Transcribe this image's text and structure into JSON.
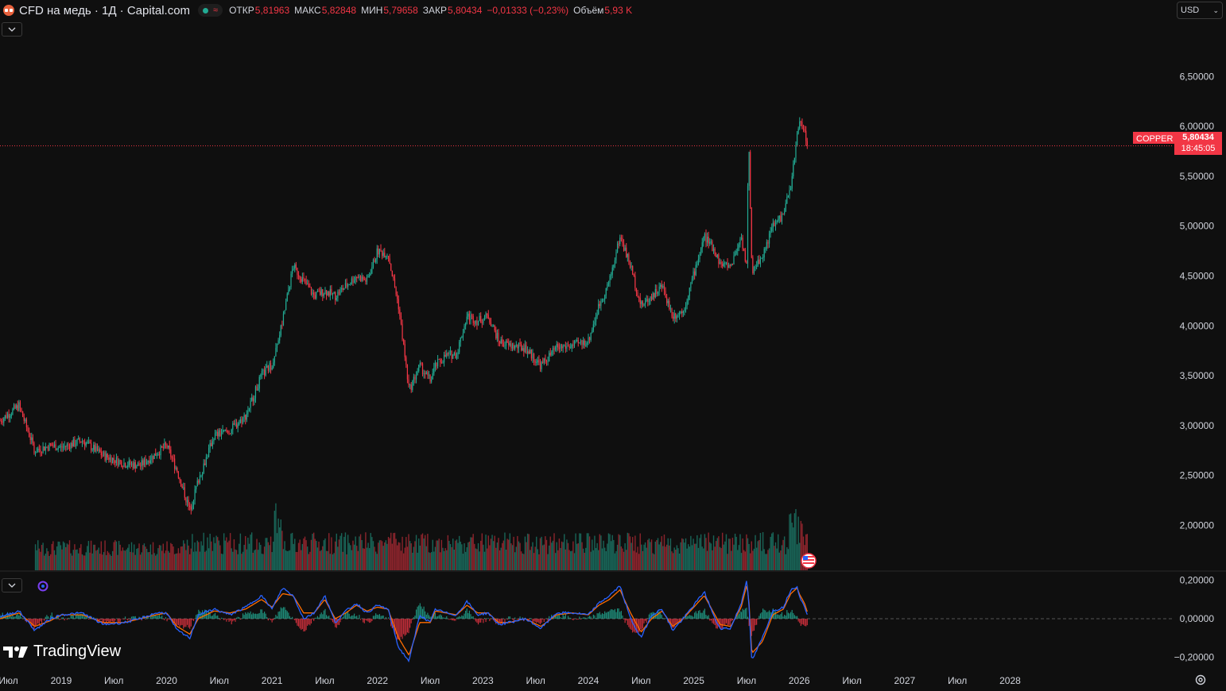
{
  "header": {
    "title": "CFD на медь · 1Д · Capital.com",
    "stats": [
      {
        "key": "ОТКР",
        "value": "5,81963"
      },
      {
        "key": "МАКС",
        "value": "5,82848"
      },
      {
        "key": "МИН",
        "value": "5,79658"
      },
      {
        "key": "ЗАКР",
        "value": "5,80434"
      }
    ],
    "change": "−0,01333 (−0,23%)",
    "volume_label": "Объём",
    "volume_value": "5,93 K"
  },
  "currency": {
    "label": "USD"
  },
  "price_tag": {
    "symbol": "COPPER",
    "price": "5,80434",
    "countdown": "18:45:05"
  },
  "branding": {
    "name": "TradingView"
  },
  "colors": {
    "up": "#22ab94",
    "down": "#f23645",
    "macd": "#2962ff",
    "signal": "#ff6d00",
    "background": "#0f0f0f"
  },
  "icons": [
    "chevron-down-icon",
    "indicator-icon",
    "us-flag-icon",
    "settings-icon"
  ],
  "chart_data": [
    {
      "type": "candlestick",
      "title": "CFD на медь · 1Д · Capital.com",
      "y_axis_ticks": [
        "6,50000",
        "6,00000",
        "5,50000",
        "5,00000",
        "4,50000",
        "4,00000",
        "3,50000",
        "3,00000",
        "2,50000",
        "2,00000"
      ],
      "ylim": [
        1.55,
        6.98
      ],
      "x_axis_ticks": [
        "Июл",
        "2019",
        "Июл",
        "2020",
        "Июл",
        "2021",
        "Июл",
        "2022",
        "Июл",
        "2023",
        "Июл",
        "2024",
        "Июл",
        "2025",
        "Июл",
        "2026",
        "Июл",
        "2027",
        "Июл",
        "2028"
      ],
      "xlim": [
        2018.42,
        2029.55
      ],
      "last_price": 5.80434,
      "series": [
        {
          "name": "",
          "x": [
            2018.42,
            2018.6,
            2018.75,
            2018.9,
            2019.0,
            2019.2,
            2019.4,
            2019.6,
            2019.75,
            2019.9,
            2020.0,
            2020.1,
            2020.22,
            2020.3,
            2020.45,
            2020.6,
            2020.75,
            2020.9,
            2021.0,
            2021.1,
            2021.2,
            2021.3,
            2021.4,
            2021.5,
            2021.6,
            2021.7,
            2021.8,
            2021.9,
            2022.0,
            2022.1,
            2022.2,
            2022.3,
            2022.4,
            2022.5,
            2022.55,
            2022.65,
            2022.75,
            2022.85,
            2022.95,
            2023.05,
            2023.15,
            2023.25,
            2023.4,
            2023.55,
            2023.7,
            2023.85,
            2024.0,
            2024.1,
            2024.2,
            2024.3,
            2024.4,
            2024.5,
            2024.6,
            2024.7,
            2024.8,
            2024.9,
            2025.0,
            2025.1,
            2025.2,
            2025.25,
            2025.35,
            2025.45,
            2025.5,
            2025.52,
            2025.55,
            2025.65,
            2025.75,
            2025.85,
            2025.92,
            2025.98,
            2026.0,
            2026.05,
            2026.08
          ],
          "close": [
            3.05,
            3.2,
            2.75,
            2.8,
            2.78,
            2.85,
            2.7,
            2.62,
            2.6,
            2.72,
            2.8,
            2.55,
            2.15,
            2.45,
            2.9,
            2.95,
            3.1,
            3.5,
            3.62,
            4.05,
            4.6,
            4.45,
            4.3,
            4.35,
            4.3,
            4.4,
            4.5,
            4.45,
            4.75,
            4.72,
            4.2,
            3.35,
            3.6,
            3.45,
            3.6,
            3.7,
            3.72,
            4.1,
            4.05,
            4.1,
            3.85,
            3.8,
            3.78,
            3.6,
            3.78,
            3.8,
            3.85,
            4.2,
            4.45,
            4.9,
            4.6,
            4.2,
            4.3,
            4.4,
            4.1,
            4.15,
            4.52,
            4.9,
            4.75,
            4.62,
            4.6,
            4.9,
            4.6,
            5.9,
            4.55,
            4.7,
            5.0,
            5.12,
            5.4,
            5.9,
            6.05,
            5.95,
            5.80434
          ]
        }
      ]
    },
    {
      "type": "bar",
      "name": "Объём",
      "last_value": "5,93 K"
    },
    {
      "type": "line",
      "name": "MACD",
      "y_axis_ticks": [
        "0,20000",
        "0,00000",
        "−0,20000"
      ],
      "ylim": [
        -0.26,
        0.235
      ],
      "x": [
        2018.42,
        2018.6,
        2018.75,
        2018.9,
        2019.0,
        2019.2,
        2019.4,
        2019.6,
        2019.75,
        2019.9,
        2020.0,
        2020.1,
        2020.22,
        2020.3,
        2020.45,
        2020.6,
        2020.75,
        2020.9,
        2021.0,
        2021.1,
        2021.2,
        2021.3,
        2021.4,
        2021.5,
        2021.6,
        2021.7,
        2021.8,
        2021.9,
        2022.0,
        2022.1,
        2022.2,
        2022.3,
        2022.4,
        2022.5,
        2022.55,
        2022.65,
        2022.75,
        2022.85,
        2022.95,
        2023.05,
        2023.15,
        2023.25,
        2023.4,
        2023.55,
        2023.7,
        2023.85,
        2024.0,
        2024.1,
        2024.2,
        2024.3,
        2024.4,
        2024.5,
        2024.6,
        2024.7,
        2024.8,
        2024.9,
        2025.0,
        2025.1,
        2025.2,
        2025.25,
        2025.35,
        2025.45,
        2025.5,
        2025.52,
        2025.55,
        2025.65,
        2025.75,
        2025.85,
        2025.92,
        2025.98,
        2026.0,
        2026.05,
        2026.08
      ],
      "macd": [
        0.01,
        0.04,
        -0.06,
        0.0,
        0.02,
        0.03,
        -0.03,
        -0.02,
        0.0,
        0.03,
        0.03,
        -0.06,
        -0.1,
        0.02,
        0.05,
        0.02,
        0.06,
        0.12,
        0.05,
        0.16,
        0.12,
        0.0,
        0.03,
        0.12,
        -0.02,
        0.04,
        0.08,
        0.03,
        0.07,
        0.05,
        -0.15,
        -0.22,
        0.02,
        -0.02,
        0.05,
        0.03,
        0.02,
        0.09,
        0.02,
        0.03,
        -0.03,
        -0.02,
        0.0,
        -0.05,
        0.03,
        0.03,
        0.02,
        0.08,
        0.12,
        0.17,
        0.0,
        -0.1,
        0.02,
        0.05,
        -0.06,
        0.0,
        0.07,
        0.14,
        0.0,
        -0.05,
        -0.05,
        0.08,
        0.2,
        0.1,
        -0.22,
        -0.1,
        0.04,
        0.06,
        0.15,
        0.17,
        0.12,
        0.06,
        0.02
      ],
      "signal": [
        0.0,
        0.03,
        -0.04,
        -0.01,
        0.02,
        0.02,
        -0.02,
        -0.02,
        0.0,
        0.02,
        0.03,
        -0.04,
        -0.08,
        0.0,
        0.04,
        0.03,
        0.05,
        0.1,
        0.06,
        0.13,
        0.12,
        0.03,
        0.03,
        0.1,
        0.0,
        0.03,
        0.07,
        0.04,
        0.06,
        0.05,
        -0.1,
        -0.19,
        -0.02,
        -0.02,
        0.04,
        0.03,
        0.02,
        0.07,
        0.03,
        0.03,
        -0.02,
        -0.02,
        0.0,
        -0.04,
        0.02,
        0.03,
        0.02,
        0.07,
        0.1,
        0.15,
        0.03,
        -0.07,
        0.0,
        0.04,
        -0.04,
        0.0,
        0.06,
        0.12,
        0.02,
        -0.03,
        -0.04,
        0.06,
        0.17,
        0.12,
        -0.18,
        -0.12,
        0.02,
        0.05,
        0.13,
        0.16,
        0.13,
        0.08,
        0.03
      ]
    }
  ]
}
